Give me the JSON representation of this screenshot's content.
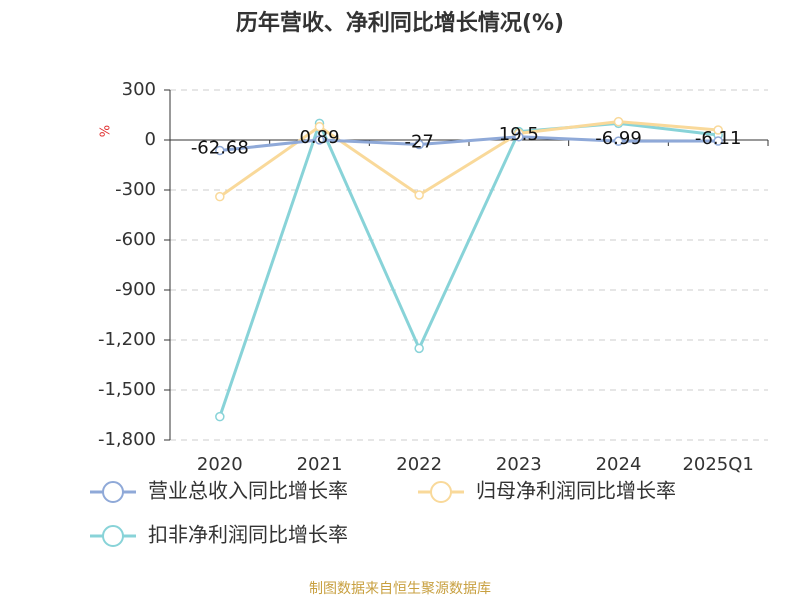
{
  "chart_data": {
    "type": "line",
    "title": "历年营收、净利同比增长情况(%)",
    "y_unit": "%",
    "categories": [
      "2020",
      "2021",
      "2022",
      "2023",
      "2024",
      "2025Q1"
    ],
    "series": [
      {
        "name": "营业总收入同比增长率",
        "color": "#8fa9d8",
        "values": [
          -62.68,
          0.89,
          -27,
          19.5,
          -6.99,
          -6.11
        ],
        "show_labels": true
      },
      {
        "name": "归母净利润同比增长率",
        "color": "#f9d99a",
        "values": [
          -340,
          80,
          -330,
          40,
          110,
          60
        ]
      },
      {
        "name": "扣非净利润同比增长率",
        "color": "#88d3d8",
        "values": [
          -1660,
          100,
          -1250,
          50,
          100,
          30
        ]
      }
    ],
    "ylim": [
      -1800,
      300
    ],
    "yticks": [
      300,
      0,
      -300,
      -600,
      -900,
      {
        "value": -1200,
        "label": "-1,200"
      },
      {
        "value": -1500,
        "label": "-1,500"
      },
      {
        "value": -1800,
        "label": "-1,800"
      }
    ],
    "grid": true,
    "source": "制图数据来自恒生聚源数据库"
  }
}
